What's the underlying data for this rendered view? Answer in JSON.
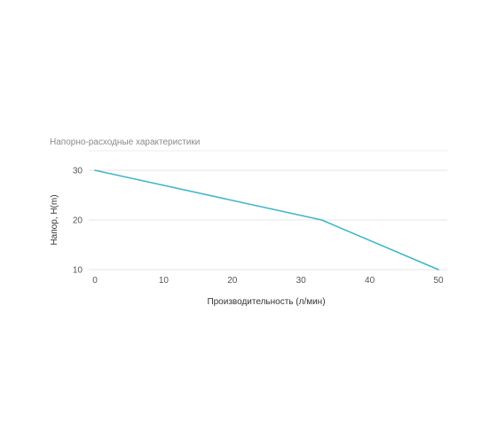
{
  "chart_data": {
    "type": "line",
    "title": "Напорно-расходные характеристики",
    "xlabel": "Производительность (л/мин)",
    "ylabel": "Напор, Н(m)",
    "xlim": [
      0,
      50
    ],
    "ylim": [
      10,
      30
    ],
    "x_ticks": [
      "0",
      "10",
      "20",
      "30",
      "40",
      "50"
    ],
    "y_ticks": [
      "10",
      "20",
      "30"
    ],
    "grid": true,
    "series": [
      {
        "x": [
          0,
          33,
          50
        ],
        "values": [
          30,
          20,
          10
        ],
        "color": "#3cb5c9"
      }
    ]
  }
}
